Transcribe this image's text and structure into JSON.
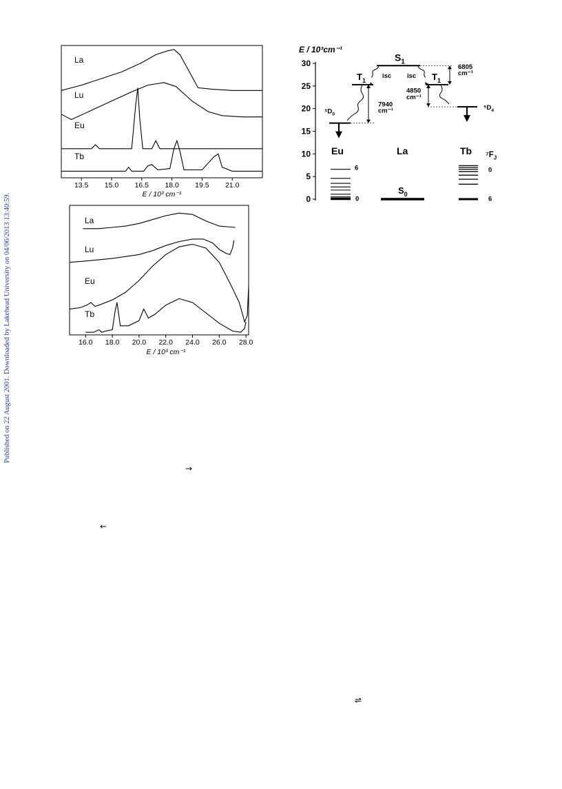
{
  "side_note": "Published on 22 August 2001. Downloaded by Lakehead University on 04/06/2013 13:40:59.",
  "glyphs": {
    "right_arrow": "→",
    "left_arrow": "←",
    "equilibrium": "⇌"
  },
  "chart_data": [
    {
      "type": "line",
      "xlabel": "E / 10³ cm⁻¹",
      "xlim": [
        12.5,
        22.5
      ],
      "x_ticks": [
        13.5,
        15.0,
        16.5,
        18.0,
        19.5,
        21.0
      ],
      "x_tick_labels": [
        "13.5",
        "15.0",
        "16.5",
        "18.0",
        "19.5",
        "21.0"
      ],
      "series": [
        {
          "name": "La",
          "x": [
            12.5,
            13.5,
            14.5,
            15.5,
            16.5,
            17.2,
            17.8,
            18.1,
            18.4,
            18.8,
            19.3,
            20,
            21,
            22.5
          ],
          "y": [
            0.66,
            0.7,
            0.75,
            0.8,
            0.87,
            0.93,
            0.96,
            0.97,
            0.93,
            0.82,
            0.68,
            0.67,
            0.66,
            0.66
          ]
        },
        {
          "name": "Lu",
          "x": [
            12.5,
            13.0,
            14,
            15,
            16,
            16.8,
            17.6,
            18.2,
            19,
            19.8,
            20.5,
            21.5,
            22.5
          ],
          "y": [
            0.48,
            0.44,
            0.51,
            0.58,
            0.65,
            0.7,
            0.72,
            0.69,
            0.58,
            0.5,
            0.47,
            0.46,
            0.46
          ]
        },
        {
          "name": "Eu",
          "x": [
            12.5,
            14.0,
            14.2,
            14.4,
            15,
            16.0,
            16.2,
            16.3,
            16.4,
            16.55,
            17.0,
            17.2,
            17.4,
            18,
            22.5
          ],
          "y": [
            0.22,
            0.22,
            0.25,
            0.22,
            0.22,
            0.22,
            0.55,
            0.68,
            0.45,
            0.22,
            0.22,
            0.28,
            0.22,
            0.22,
            0.22
          ]
        },
        {
          "name": "Tb",
          "x": [
            12.5,
            15,
            15.7,
            15.85,
            16,
            16.6,
            16.8,
            17.0,
            17.3,
            17.9,
            18.1,
            18.25,
            18.4,
            18.6,
            19.5,
            20.1,
            20.3,
            20.5,
            21,
            22.5
          ],
          "y": [
            0.05,
            0.05,
            0.05,
            0.08,
            0.05,
            0.05,
            0.09,
            0.1,
            0.06,
            0.07,
            0.22,
            0.28,
            0.2,
            0.06,
            0.06,
            0.16,
            0.18,
            0.08,
            0.05,
            0.05
          ]
        }
      ]
    },
    {
      "type": "line",
      "xlabel": "E / 10³ cm⁻¹",
      "xlim": [
        14.8,
        28.2
      ],
      "x_ticks": [
        16.0,
        18.0,
        20.0,
        22.0,
        24.0,
        26.0,
        28.0
      ],
      "x_tick_labels": [
        "16.0",
        "18.0",
        "20.0",
        "22.0",
        "24.0",
        "26.0",
        "28.0"
      ],
      "series": [
        {
          "name": "La",
          "x": [
            15.8,
            17,
            18,
            19,
            20,
            21,
            22,
            23,
            24,
            25,
            26,
            27.2
          ],
          "y": [
            0.82,
            0.82,
            0.83,
            0.84,
            0.86,
            0.89,
            0.92,
            0.94,
            0.93,
            0.88,
            0.84,
            0.83
          ]
        },
        {
          "name": "Lu",
          "x": [
            14.8,
            16,
            18,
            20,
            21,
            22,
            23,
            24,
            24.8,
            25.5,
            26,
            26.5,
            26.8,
            27.0,
            27.1
          ],
          "y": [
            0.56,
            0.57,
            0.59,
            0.62,
            0.65,
            0.69,
            0.72,
            0.74,
            0.74,
            0.71,
            0.66,
            0.63,
            0.62,
            0.67,
            0.73
          ]
        },
        {
          "name": "Eu",
          "x": [
            14.8,
            15.6,
            16.1,
            16.4,
            16.7,
            17,
            18,
            19,
            20,
            21,
            22,
            23,
            24,
            25,
            26,
            26.8,
            27.5,
            27.9,
            28.1,
            28.2
          ],
          "y": [
            0.2,
            0.21,
            0.23,
            0.25,
            0.22,
            0.23,
            0.27,
            0.33,
            0.42,
            0.53,
            0.62,
            0.68,
            0.7,
            0.67,
            0.56,
            0.4,
            0.25,
            0.1,
            0.15,
            0.38
          ]
        },
        {
          "name": "Tb",
          "x": [
            16,
            16.6,
            17,
            17.2,
            17.5,
            18,
            18.2,
            18.35,
            18.6,
            19.2,
            20,
            20.35,
            20.7,
            21.2,
            22,
            23,
            24,
            25,
            26,
            27,
            27.6,
            27.9,
            28.0
          ],
          "y": [
            0.02,
            0.02,
            0.04,
            0.02,
            0.03,
            0.04,
            0.18,
            0.25,
            0.07,
            0.07,
            0.11,
            0.2,
            0.13,
            0.16,
            0.23,
            0.28,
            0.25,
            0.17,
            0.09,
            0.03,
            0.02,
            0.05,
            0.1
          ]
        }
      ]
    },
    {
      "type": "diagram",
      "y_label": "E / 10³cm⁻¹",
      "ylim": [
        0,
        30
      ],
      "y_ticks": [
        0,
        5,
        10,
        15,
        20,
        25,
        30
      ],
      "y_tick_labels": [
        "0",
        "5",
        "10",
        "15",
        "20",
        "25",
        "30"
      ],
      "levels": {
        "S1": 29.5,
        "T1_left": 25.3,
        "T1_right": 25.3,
        "D0": 16.8,
        "D4": 20.4,
        "S0": 0
      },
      "labels": {
        "S1": "S",
        "S1_sub": "1",
        "T1": "T",
        "T1_sub": "1",
        "isc": "isc",
        "D0": "⁵D",
        "D0_sub": "0",
        "D4": "⁵D",
        "D4_sub": "4",
        "S0": "S",
        "S0_sub": "0",
        "gap_left_value": "7940",
        "gap_left_unit": "cm⁻¹",
        "gap_mid_value": "4850",
        "gap_mid_unit": "cm⁻¹",
        "gap_right_value": "6805",
        "gap_right_unit": "cm⁻¹",
        "eu": "Eu",
        "la": "La",
        "tb": "Tb",
        "FJ": "⁷F",
        "FJ_sub": "J",
        "eu_top": "6",
        "eu_bottom": "0",
        "tb_top": "0",
        "tb_bottom": "6"
      },
      "eu_7FJ_levels": [
        0.0,
        0.25,
        0.5,
        1.1,
        2.0,
        2.7,
        3.5,
        4.6,
        6.6
      ],
      "tb_7FJ_levels": [
        0.0,
        3.3,
        4.4,
        5.3,
        6.1,
        6.6,
        7.0,
        7.4
      ]
    }
  ]
}
